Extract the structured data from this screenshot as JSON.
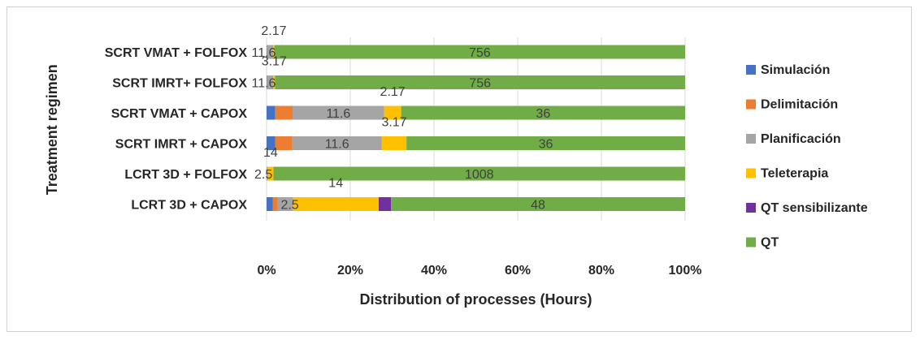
{
  "chart_data": {
    "type": "bar",
    "orientation": "horizontal",
    "stacked": "percent",
    "title": "",
    "xlabel": "Distribution of processes (Hours)",
    "ylabel": "Treatment regimen",
    "xlim": [
      0,
      100
    ],
    "x_ticks": [
      "0%",
      "20%",
      "40%",
      "60%",
      "80%",
      "100%"
    ],
    "grid": true,
    "legend_position": "right",
    "categories": [
      "SCRT VMAT + FOLFOX",
      "SCRT IMRT+ FOLFOX",
      "SCRT VMAT + CAPOX",
      "SCRT IMRT + CAPOX",
      "LCRT 3D + FOLFOX",
      "LCRT 3D + CAPOX"
    ],
    "series": [
      {
        "name": "Simulación",
        "color": "#4472C4",
        "values": [
          0.5,
          0.5,
          1.1,
          1.1,
          0.1,
          1.0
        ]
      },
      {
        "name": "Delimitación",
        "color": "#ED7D31",
        "values": [
          0.2,
          0.2,
          2.2,
          2.2,
          0.2,
          0.8
        ]
      },
      {
        "name": "Planificación",
        "color": "#A5A5A5",
        "values": [
          11.6,
          11.6,
          11.6,
          11.6,
          2.5,
          2.5
        ]
      },
      {
        "name": "Teleterapia",
        "color": "#FFC000",
        "values": [
          2.17,
          3.17,
          2.17,
          3.17,
          14,
          14
        ]
      },
      {
        "name": "QT sensibilizante",
        "color": "#7030A0",
        "values": [
          0,
          0,
          0,
          0,
          0,
          2.0
        ]
      },
      {
        "name": "QT",
        "color": "#70AD47",
        "values": [
          756,
          756,
          36,
          36,
          1008,
          48
        ]
      }
    ],
    "data_labels": [
      {
        "row": 0,
        "series": 2,
        "text": "11.6"
      },
      {
        "row": 0,
        "series": 3,
        "text": "2.17"
      },
      {
        "row": 0,
        "series": 5,
        "text": "756"
      },
      {
        "row": 1,
        "series": 2,
        "text": "11.6"
      },
      {
        "row": 1,
        "series": 3,
        "text": "3.17"
      },
      {
        "row": 1,
        "series": 5,
        "text": "756"
      },
      {
        "row": 2,
        "series": 2,
        "text": "11.6"
      },
      {
        "row": 2,
        "series": 3,
        "text": "2.17"
      },
      {
        "row": 2,
        "series": 5,
        "text": "36"
      },
      {
        "row": 3,
        "series": 2,
        "text": "11.6"
      },
      {
        "row": 3,
        "series": 3,
        "text": "3.17"
      },
      {
        "row": 3,
        "series": 5,
        "text": "36"
      },
      {
        "row": 4,
        "series": 2,
        "text": "2.5"
      },
      {
        "row": 4,
        "series": 3,
        "text": "14"
      },
      {
        "row": 4,
        "series": 5,
        "text": "1008"
      },
      {
        "row": 5,
        "series": 2,
        "text": "2.5"
      },
      {
        "row": 5,
        "series": 3,
        "text": "14"
      },
      {
        "row": 5,
        "series": 5,
        "text": "48"
      }
    ]
  }
}
